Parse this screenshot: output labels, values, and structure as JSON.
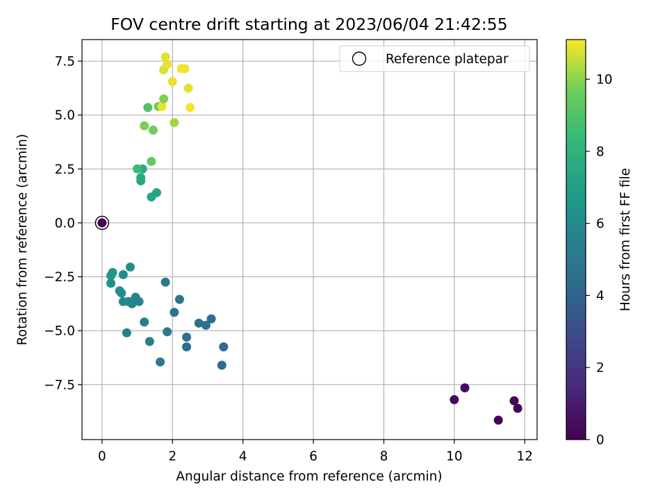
{
  "chart_data": {
    "type": "scatter",
    "title": "FOV centre drift starting at 2023/06/04 21:42:55",
    "xlabel": "Angular distance from reference (arcmin)",
    "ylabel": "Rotation from reference (arcmin)",
    "xlim": [
      -0.57,
      12.35
    ],
    "ylim": [
      -10.05,
      8.5
    ],
    "xticks": [
      0,
      2,
      4,
      6,
      8,
      10,
      12
    ],
    "yticks": [
      -7.5,
      -5.0,
      -2.5,
      0.0,
      2.5,
      5.0,
      7.5
    ],
    "xtick_labels": [
      "0",
      "2",
      "4",
      "6",
      "8",
      "10",
      "12"
    ],
    "ytick_labels": [
      "−7.5",
      "−5.0",
      "−2.5",
      "0.0",
      "2.5",
      "5.0",
      "7.5"
    ],
    "grid": true,
    "legend_position": "top-right",
    "legend": [
      "Reference platepar"
    ],
    "reference_point": {
      "x": 0.0,
      "y": 0.0
    },
    "colorbar": {
      "label": "Hours from first FF file",
      "range": [
        0,
        11.1
      ],
      "ticks": [
        0,
        2,
        4,
        6,
        8,
        10
      ],
      "tick_labels": [
        "0",
        "2",
        "4",
        "6",
        "8",
        "10"
      ],
      "colormap": "viridis"
    },
    "points": [
      {
        "x": 0.0,
        "y": 0.0,
        "t": 0.0
      },
      {
        "x": 10.0,
        "y": -8.2,
        "t": 0.3
      },
      {
        "x": 10.3,
        "y": -7.65,
        "t": 0.35
      },
      {
        "x": 11.7,
        "y": -8.25,
        "t": 0.2
      },
      {
        "x": 11.8,
        "y": -8.6,
        "t": 0.1
      },
      {
        "x": 11.25,
        "y": -9.15,
        "t": 0.15
      },
      {
        "x": 3.4,
        "y": -6.6,
        "t": 4.3
      },
      {
        "x": 3.45,
        "y": -5.75,
        "t": 4.3
      },
      {
        "x": 2.4,
        "y": -5.75,
        "t": 4.5
      },
      {
        "x": 2.4,
        "y": -5.3,
        "t": 4.6
      },
      {
        "x": 3.1,
        "y": -4.45,
        "t": 4.4
      },
      {
        "x": 2.95,
        "y": -4.75,
        "t": 4.5
      },
      {
        "x": 2.75,
        "y": -4.65,
        "t": 4.6
      },
      {
        "x": 2.2,
        "y": -3.55,
        "t": 4.8
      },
      {
        "x": 2.05,
        "y": -4.15,
        "t": 4.9
      },
      {
        "x": 1.8,
        "y": -2.75,
        "t": 5.0
      },
      {
        "x": 1.85,
        "y": -5.05,
        "t": 5.0
      },
      {
        "x": 1.65,
        "y": -6.45,
        "t": 5.2
      },
      {
        "x": 1.35,
        "y": -5.5,
        "t": 5.3
      },
      {
        "x": 1.2,
        "y": -4.6,
        "t": 5.4
      },
      {
        "x": 0.7,
        "y": -5.1,
        "t": 5.5
      },
      {
        "x": 1.05,
        "y": -3.65,
        "t": 5.6
      },
      {
        "x": 0.95,
        "y": -3.45,
        "t": 5.6
      },
      {
        "x": 0.85,
        "y": -3.75,
        "t": 5.7
      },
      {
        "x": 0.75,
        "y": -3.65,
        "t": 5.8
      },
      {
        "x": 0.6,
        "y": -3.65,
        "t": 5.9
      },
      {
        "x": 0.6,
        "y": -2.4,
        "t": 6.0
      },
      {
        "x": 0.8,
        "y": -2.05,
        "t": 6.1
      },
      {
        "x": 0.5,
        "y": -3.15,
        "t": 6.1
      },
      {
        "x": 0.55,
        "y": -3.25,
        "t": 6.2
      },
      {
        "x": 0.25,
        "y": -2.8,
        "t": 6.3
      },
      {
        "x": 0.25,
        "y": -2.45,
        "t": 6.4
      },
      {
        "x": 0.3,
        "y": -2.3,
        "t": 6.5
      },
      {
        "x": 1.4,
        "y": 1.2,
        "t": 7.3
      },
      {
        "x": 1.55,
        "y": 1.4,
        "t": 7.3
      },
      {
        "x": 1.1,
        "y": 1.95,
        "t": 7.4
      },
      {
        "x": 1.1,
        "y": 2.1,
        "t": 7.5
      },
      {
        "x": 1.15,
        "y": 2.5,
        "t": 7.7
      },
      {
        "x": 1.0,
        "y": 2.5,
        "t": 8.5
      },
      {
        "x": 1.4,
        "y": 2.85,
        "t": 9.4
      },
      {
        "x": 1.45,
        "y": 4.3,
        "t": 9.7
      },
      {
        "x": 1.2,
        "y": 4.5,
        "t": 9.8
      },
      {
        "x": 1.3,
        "y": 5.35,
        "t": 9.0
      },
      {
        "x": 1.6,
        "y": 5.4,
        "t": 9.6
      },
      {
        "x": 1.7,
        "y": 5.4,
        "t": 10.9
      },
      {
        "x": 1.75,
        "y": 5.75,
        "t": 9.9
      },
      {
        "x": 2.05,
        "y": 4.65,
        "t": 10.2
      },
      {
        "x": 2.0,
        "y": 6.55,
        "t": 10.9
      },
      {
        "x": 2.45,
        "y": 6.25,
        "t": 10.8
      },
      {
        "x": 2.5,
        "y": 5.35,
        "t": 11.0
      },
      {
        "x": 1.75,
        "y": 7.1,
        "t": 10.7
      },
      {
        "x": 1.85,
        "y": 7.35,
        "t": 10.9
      },
      {
        "x": 1.8,
        "y": 7.7,
        "t": 10.8
      },
      {
        "x": 2.25,
        "y": 7.15,
        "t": 11.0
      },
      {
        "x": 2.35,
        "y": 7.15,
        "t": 11.0
      }
    ]
  }
}
